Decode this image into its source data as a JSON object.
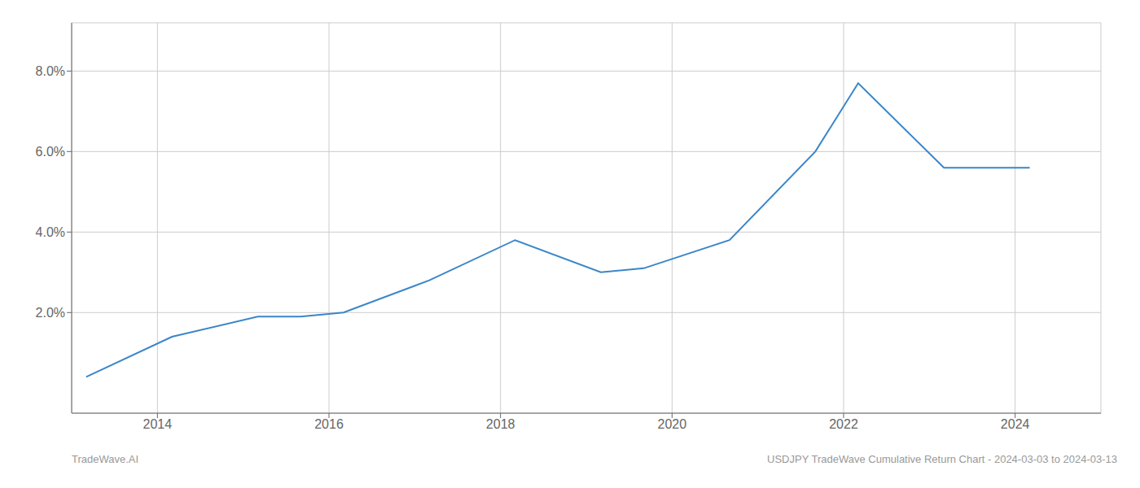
{
  "chart_data": {
    "type": "line",
    "x": [
      2013.17,
      2014.17,
      2015.17,
      2015.67,
      2016.17,
      2017.17,
      2018.17,
      2019.17,
      2019.67,
      2020.67,
      2021.67,
      2022.17,
      2023.17,
      2023.67,
      2024.17
    ],
    "values": [
      0.004,
      0.014,
      0.019,
      0.019,
      0.02,
      0.028,
      0.038,
      0.03,
      0.031,
      0.038,
      0.06,
      0.077,
      0.056,
      0.056,
      0.056
    ],
    "color": "#3a86c8",
    "xlim": [
      2013.0,
      2025.0
    ],
    "ylim": [
      -0.005,
      0.092
    ],
    "xticks": [
      2014,
      2016,
      2018,
      2020,
      2022,
      2024
    ],
    "yticks": [
      {
        "value": 0.02,
        "label": "2.0%"
      },
      {
        "value": 0.04,
        "label": "4.0%"
      },
      {
        "value": 0.06,
        "label": "6.0%"
      },
      {
        "value": 0.08,
        "label": "8.0%"
      }
    ],
    "grid": true,
    "annotations": [
      "TradeWave.AI",
      "USDJPY TradeWave Cumulative Return Chart - 2024-03-03 to 2024-03-13"
    ]
  }
}
